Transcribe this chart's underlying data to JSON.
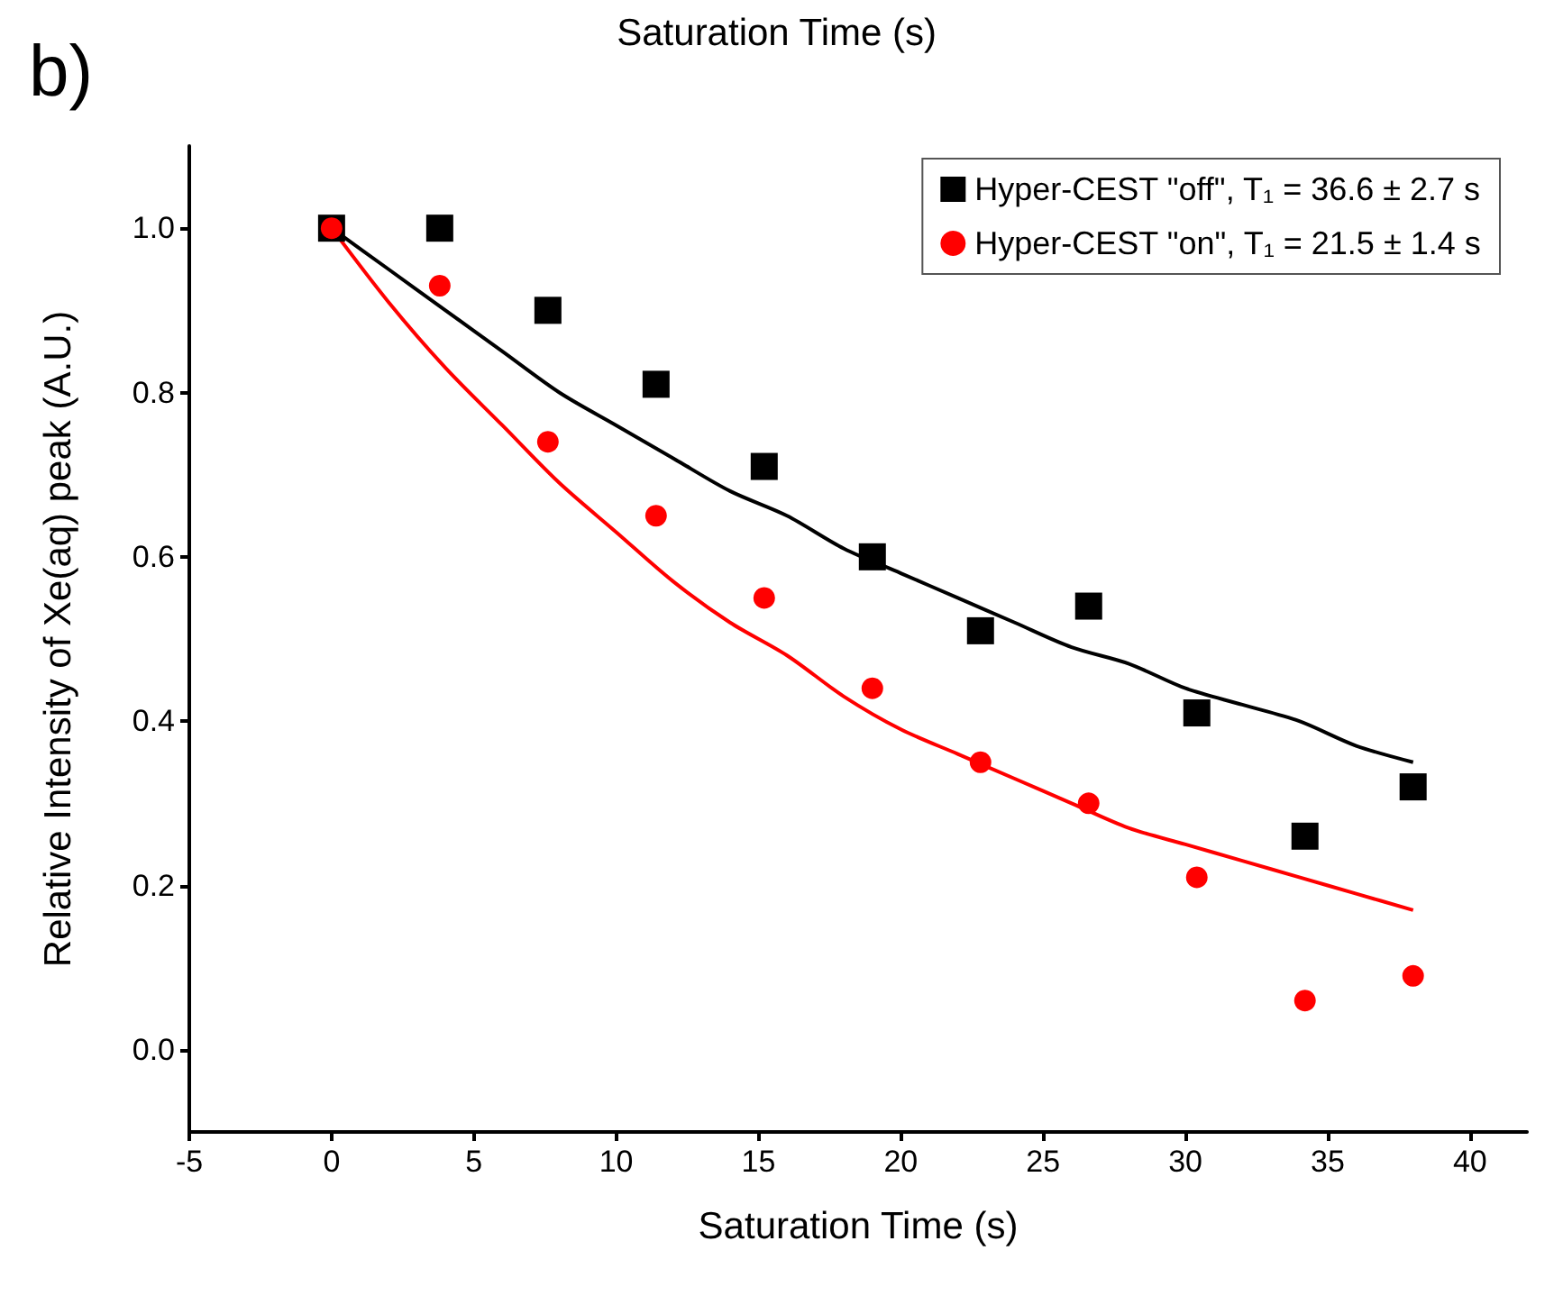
{
  "chart_data": {
    "type": "scatter",
    "xlabel": "Saturation Time (s)",
    "ylabel": "Relative Intensity of Xe(aq) peak (A.U.)",
    "annotations": [
      "Saturation Time (s)",
      "b)"
    ],
    "xlim": [
      -5,
      42
    ],
    "xticks": [
      -5,
      0,
      5,
      10,
      15,
      20,
      25,
      30,
      35,
      40
    ],
    "ylim": [
      -0.1,
      1.1
    ],
    "yticks": [
      {
        "value": 0,
        "label": "0.0"
      },
      0.2,
      0.4,
      0.6,
      0.8,
      {
        "value": 1,
        "label": "1.0"
      }
    ],
    "grid": false,
    "legend": "top right",
    "series": [
      {
        "name": "Hyper-CEST \"off\", T₁ = 36.6 ± 2.7 s",
        "color": "#000000",
        "marker": "square",
        "x": [
          0,
          3.8,
          7.6,
          11.4,
          15.2,
          19,
          22.8,
          26.6,
          30.4,
          34.2,
          38
        ],
        "values": [
          1.0,
          1.0,
          0.9,
          0.81,
          0.71,
          0.6,
          0.51,
          0.54,
          0.41,
          0.26,
          0.32
        ]
      },
      {
        "name": "Hyper-CEST \"on\", T₁ = 21.5 ± 1.4 s",
        "color": "#ff0000",
        "marker": "circle",
        "x": [
          0,
          3.8,
          7.6,
          11.4,
          15.2,
          19,
          22.8,
          26.6,
          30.4,
          34.2,
          38
        ],
        "values": [
          1.0,
          0.93,
          0.74,
          0.65,
          0.55,
          0.44,
          0.35,
          0.3,
          0.21,
          0.06,
          0.09
        ]
      },
      {
        "type": "line",
        "color": "#000000",
        "line_style": "solid",
        "x": [
          0,
          2,
          4,
          6,
          8,
          10,
          12,
          14,
          16,
          18,
          20,
          22,
          24,
          26,
          28,
          30,
          32,
          34,
          36,
          38
        ],
        "values": [
          1.0,
          0.95,
          0.9,
          0.85,
          0.8,
          0.76,
          0.72,
          0.68,
          0.65,
          0.61,
          0.58,
          0.55,
          0.52,
          0.49,
          0.47,
          0.44,
          0.42,
          0.4,
          0.37,
          0.35
        ]
      },
      {
        "type": "line",
        "color": "#ff0000",
        "line_style": "solid",
        "x": [
          0,
          2,
          4,
          6,
          8,
          10,
          12,
          14,
          16,
          18,
          20,
          22,
          24,
          26,
          28,
          30,
          32,
          34,
          36,
          38
        ],
        "values": [
          1.0,
          0.91,
          0.83,
          0.76,
          0.69,
          0.63,
          0.57,
          0.52,
          0.48,
          0.43,
          0.39,
          0.36,
          0.33,
          0.3,
          0.27,
          0.25,
          0.23,
          0.21,
          0.19,
          0.17
        ]
      }
    ]
  }
}
